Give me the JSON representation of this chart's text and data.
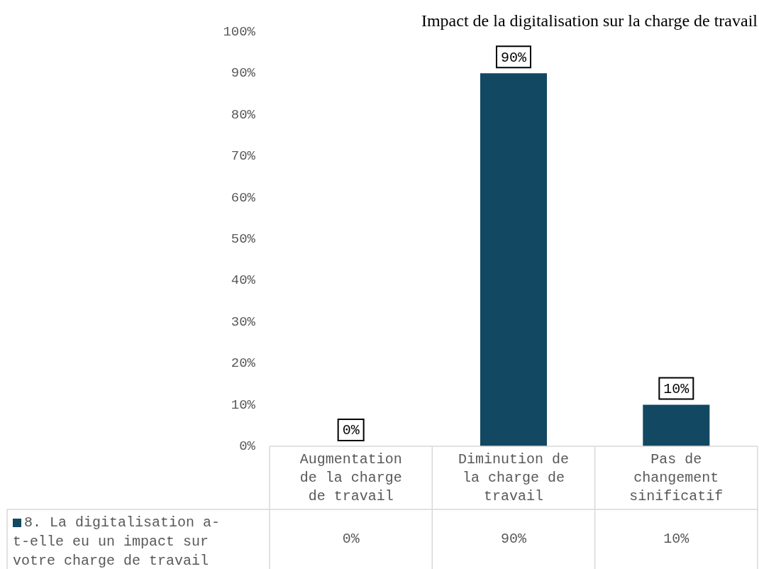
{
  "chart_data": {
    "type": "bar",
    "title": "Impact de la digitalisation sur la charge de travail",
    "categories": [
      "Augmentation de la charge de travail",
      "Diminution de la charge de travail",
      "Pas de changement sinificatif"
    ],
    "series": [
      {
        "name": "8. La digitalisation a-t-elle eu un impact sur votre charge de travail",
        "color": "#124862",
        "values": [
          0,
          90,
          10
        ],
        "value_labels": [
          "0%",
          "90%",
          "10%"
        ]
      }
    ],
    "ylim": [
      0,
      100
    ],
    "yticks": [
      {
        "value": 0,
        "label": "0%"
      },
      {
        "value": 10,
        "label": "10%"
      },
      {
        "value": 20,
        "label": "20%"
      },
      {
        "value": 30,
        "label": "30%"
      },
      {
        "value": 40,
        "label": "40%"
      },
      {
        "value": 50,
        "label": "50%"
      },
      {
        "value": 60,
        "label": "60%"
      },
      {
        "value": 70,
        "label": "70%"
      },
      {
        "value": 80,
        "label": "80%"
      },
      {
        "value": 90,
        "label": "90%"
      },
      {
        "value": 100,
        "label": "100%"
      }
    ],
    "grid": false
  }
}
